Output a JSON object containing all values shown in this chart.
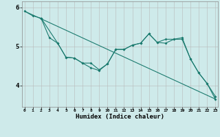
{
  "xlabel": "Humidex (Indice chaleur)",
  "bg_color": "#ceeaea",
  "line_color": "#1a7a6e",
  "grid_color": "#b8b8b8",
  "x_ticks": [
    0,
    1,
    2,
    3,
    4,
    5,
    6,
    7,
    8,
    9,
    10,
    11,
    12,
    13,
    14,
    15,
    16,
    17,
    18,
    19,
    20,
    21,
    22,
    23
  ],
  "y_ticks": [
    4,
    5,
    6
  ],
  "ylim": [
    3.45,
    6.15
  ],
  "xlim": [
    -0.3,
    23.3
  ],
  "line1_x": [
    0,
    1,
    2
  ],
  "line1_y": [
    5.9,
    5.78,
    5.72
  ],
  "line2_x": [
    2,
    3,
    4,
    5,
    6,
    7,
    8,
    9,
    10,
    11,
    12,
    13,
    14,
    15,
    16,
    17,
    18,
    19,
    20,
    21,
    22,
    23
  ],
  "line2_y": [
    5.72,
    5.22,
    5.08,
    4.72,
    4.7,
    4.57,
    4.57,
    4.4,
    4.55,
    4.92,
    4.92,
    5.03,
    5.08,
    5.32,
    5.1,
    5.18,
    5.18,
    5.18,
    4.68,
    4.32,
    4.05,
    3.72
  ],
  "line3_x": [
    0,
    23
  ],
  "line3_y": [
    5.9,
    3.65
  ],
  "line4_x": [
    2,
    4,
    5,
    6,
    7,
    8,
    9,
    10,
    11,
    12,
    13,
    14,
    15,
    16,
    17,
    18,
    19,
    20,
    21,
    22,
    23
  ],
  "line4_y": [
    5.72,
    5.08,
    4.72,
    4.7,
    4.57,
    4.45,
    4.38,
    4.55,
    4.92,
    4.92,
    5.03,
    5.08,
    5.32,
    5.1,
    5.08,
    5.18,
    5.22,
    4.68,
    4.32,
    4.05,
    3.65
  ]
}
